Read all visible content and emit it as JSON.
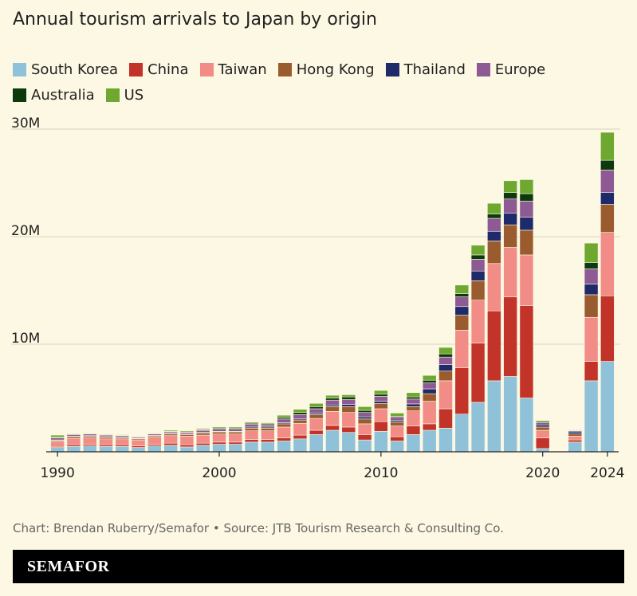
{
  "chart_data": {
    "type": "bar",
    "stacked": true,
    "title": "Annual tourism arrivals to Japan by origin",
    "x": [
      1990,
      1991,
      1992,
      1993,
      1994,
      1995,
      1996,
      1997,
      1998,
      1999,
      2000,
      2001,
      2002,
      2003,
      2004,
      2005,
      2006,
      2007,
      2008,
      2009,
      2010,
      2011,
      2012,
      2013,
      2014,
      2015,
      2016,
      2017,
      2018,
      2019,
      2020,
      2021,
      2022,
      2023,
      2024
    ],
    "xlim": [
      1989.5,
      2024.5
    ],
    "xticks": [
      1990,
      2000,
      2010,
      2020,
      2024
    ],
    "ylim": [
      0,
      30
    ],
    "yticks": [
      {
        "value": 10,
        "label": "10M"
      },
      {
        "value": 20,
        "label": "20M"
      },
      {
        "value": 30,
        "label": "30M"
      }
    ],
    "grid": true,
    "series": [
      {
        "name": "South Korea",
        "color": "#8fc1d9",
        "values": [
          0.4,
          0.5,
          0.55,
          0.5,
          0.5,
          0.4,
          0.55,
          0.6,
          0.45,
          0.6,
          0.7,
          0.7,
          0.9,
          0.9,
          1.0,
          1.2,
          1.6,
          2.0,
          1.8,
          1.1,
          1.9,
          1.0,
          1.6,
          2.0,
          2.2,
          3.5,
          4.6,
          6.6,
          7.0,
          5.0,
          0.3,
          0,
          0.9,
          6.6,
          8.4
        ]
      },
      {
        "name": "China",
        "color": "#c2332a",
        "values": [
          0.1,
          0.15,
          0.15,
          0.15,
          0.15,
          0.15,
          0.15,
          0.2,
          0.2,
          0.2,
          0.2,
          0.2,
          0.25,
          0.25,
          0.3,
          0.35,
          0.4,
          0.45,
          0.5,
          0.5,
          0.9,
          0.4,
          0.8,
          0.6,
          1.8,
          4.3,
          5.5,
          6.5,
          7.4,
          8.6,
          1.0,
          0,
          0.2,
          1.8,
          6.1
        ]
      },
      {
        "name": "Taiwan",
        "color": "#f28c86",
        "values": [
          0.45,
          0.6,
          0.6,
          0.55,
          0.55,
          0.55,
          0.65,
          0.7,
          0.8,
          0.75,
          0.75,
          0.75,
          0.8,
          0.8,
          1.0,
          1.1,
          1.1,
          1.3,
          1.35,
          1.0,
          1.2,
          1.0,
          1.4,
          2.1,
          2.6,
          3.5,
          4.0,
          4.4,
          4.6,
          4.7,
          0.7,
          0,
          0.35,
          4.1,
          5.9
        ]
      },
      {
        "name": "Hong Kong",
        "color": "#9a5b2f",
        "values": [
          0.1,
          0.15,
          0.15,
          0.15,
          0.12,
          0.1,
          0.12,
          0.15,
          0.15,
          0.2,
          0.2,
          0.2,
          0.25,
          0.25,
          0.3,
          0.3,
          0.35,
          0.45,
          0.55,
          0.45,
          0.5,
          0.35,
          0.4,
          0.7,
          0.9,
          1.4,
          1.8,
          2.1,
          2.1,
          2.3,
          0.3,
          0,
          0.2,
          2.1,
          2.6
        ]
      },
      {
        "name": "Thailand",
        "color": "#1f2a6b",
        "values": [
          0.05,
          0.05,
          0.05,
          0.05,
          0.05,
          0.05,
          0.05,
          0.05,
          0.05,
          0.05,
          0.05,
          0.05,
          0.1,
          0.1,
          0.1,
          0.1,
          0.15,
          0.15,
          0.2,
          0.2,
          0.2,
          0.15,
          0.25,
          0.45,
          0.6,
          0.8,
          0.9,
          0.9,
          1.1,
          1.2,
          0.2,
          0,
          0.2,
          1.0,
          1.1
        ]
      },
      {
        "name": "Europe",
        "color": "#8e5a94",
        "values": [
          0.2,
          0.15,
          0.15,
          0.15,
          0.13,
          0.1,
          0.13,
          0.15,
          0.15,
          0.2,
          0.2,
          0.2,
          0.25,
          0.2,
          0.35,
          0.4,
          0.4,
          0.45,
          0.45,
          0.4,
          0.45,
          0.3,
          0.45,
          0.55,
          0.7,
          0.9,
          1.1,
          1.2,
          1.3,
          1.5,
          0.2,
          0,
          0.1,
          1.4,
          2.1
        ]
      },
      {
        "name": "Australia",
        "color": "#0c3a0c",
        "values": [
          0.05,
          0.05,
          0.05,
          0.05,
          0.05,
          0.05,
          0.05,
          0.05,
          0.05,
          0.05,
          0.1,
          0.1,
          0.1,
          0.1,
          0.15,
          0.2,
          0.2,
          0.2,
          0.25,
          0.2,
          0.2,
          0.1,
          0.2,
          0.25,
          0.3,
          0.3,
          0.4,
          0.4,
          0.6,
          0.7,
          0.1,
          0,
          0.05,
          0.6,
          0.9
        ]
      },
      {
        "name": "US",
        "color": "#6ea830",
        "values": [
          0.2,
          0.05,
          0.05,
          0.05,
          0.05,
          0.05,
          0.05,
          0.1,
          0.1,
          0.1,
          0.1,
          0.1,
          0.1,
          0.1,
          0.2,
          0.3,
          0.3,
          0.25,
          0.2,
          0.35,
          0.35,
          0.3,
          0.4,
          0.45,
          0.6,
          0.8,
          0.9,
          1.0,
          1.1,
          1.3,
          0.1,
          0,
          0.05,
          1.8,
          2.6
        ]
      }
    ]
  },
  "footer": {
    "source": "Chart: Brendan Ruberry/Semafor • Source: JTB Tourism Research & Consulting Co.",
    "brand": "SEMAFOR"
  }
}
